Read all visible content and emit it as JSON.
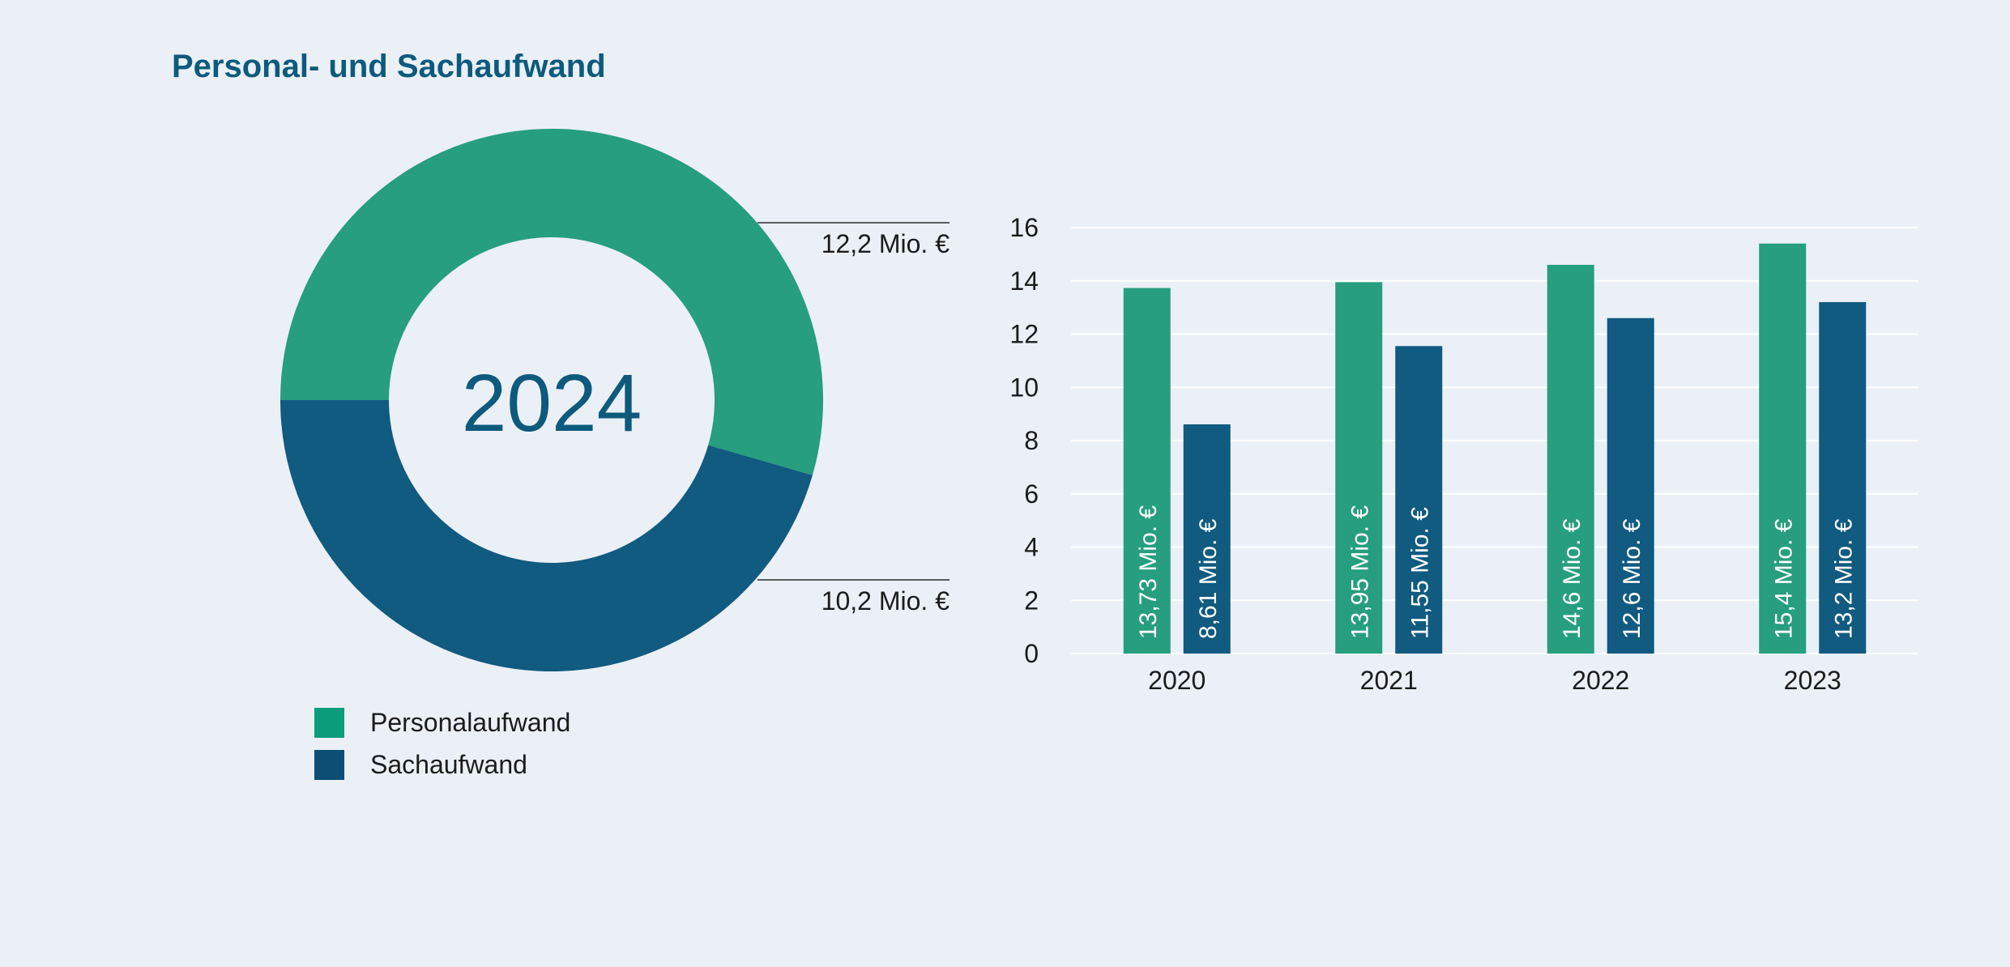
{
  "header": {
    "title": "Personal- und Sachaufwand"
  },
  "colors": {
    "personal": "#279e7e",
    "sach": "#115a80",
    "title": "#0d5a7d",
    "legend_personal": "#0b9c7b",
    "legend_sach": "#0d4f74"
  },
  "legend": [
    {
      "label": "Personalaufwand",
      "color": "#0b9c7b"
    },
    {
      "label": "Sachaufwand",
      "color": "#0d4f74"
    }
  ],
  "chart_data": [
    {
      "type": "pie",
      "variant": "donut",
      "center_label": "2024",
      "slices": [
        {
          "name": "Personalaufwand",
          "value": 12.2,
          "label": "12,2 Mio. €"
        },
        {
          "name": "Sachaufwand",
          "value": 10.2,
          "label": "10,2 Mio. €"
        }
      ]
    },
    {
      "type": "bar",
      "categories": [
        "2020",
        "2021",
        "2022",
        "2023"
      ],
      "series": [
        {
          "name": "Personalaufwand",
          "values": [
            13.73,
            13.95,
            14.6,
            15.4
          ],
          "labels": [
            "13,73 Mio. €",
            "13,95 Mio. €",
            "14,6 Mio. €",
            "15,4 Mio. €"
          ]
        },
        {
          "name": "Sachaufwand",
          "values": [
            8.61,
            11.55,
            12.6,
            13.2
          ],
          "labels": [
            "8,61 Mio. €",
            "11,55 Mio. €",
            "12,6 Mio. €",
            "13,2 Mio. €"
          ]
        }
      ],
      "yticks": [
        "0",
        "2",
        "4",
        "6",
        "8",
        "10",
        "12",
        "14",
        "16"
      ],
      "ylim": [
        0,
        16
      ],
      "grid": true
    }
  ]
}
